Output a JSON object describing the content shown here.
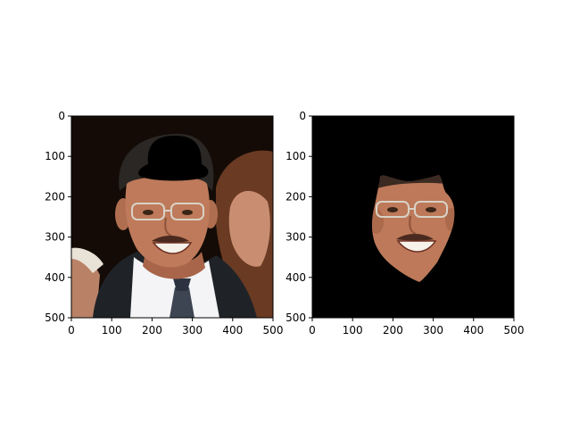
{
  "chart_data": [
    {
      "type": "image",
      "xlim": [
        0,
        500
      ],
      "ylim": [
        500,
        0
      ],
      "x_ticks": [
        0,
        100,
        200,
        300,
        400,
        500
      ],
      "y_ticks": [
        0,
        100,
        200,
        300,
        400,
        500
      ],
      "image": "photo-with-masked-hair"
    },
    {
      "type": "image",
      "xlim": [
        0,
        500
      ],
      "ylim": [
        500,
        0
      ],
      "x_ticks": [
        0,
        100,
        200,
        300,
        400,
        500
      ],
      "y_ticks": [
        0,
        100,
        200,
        300,
        400,
        500
      ],
      "image": "face-segmentation-on-black"
    }
  ]
}
